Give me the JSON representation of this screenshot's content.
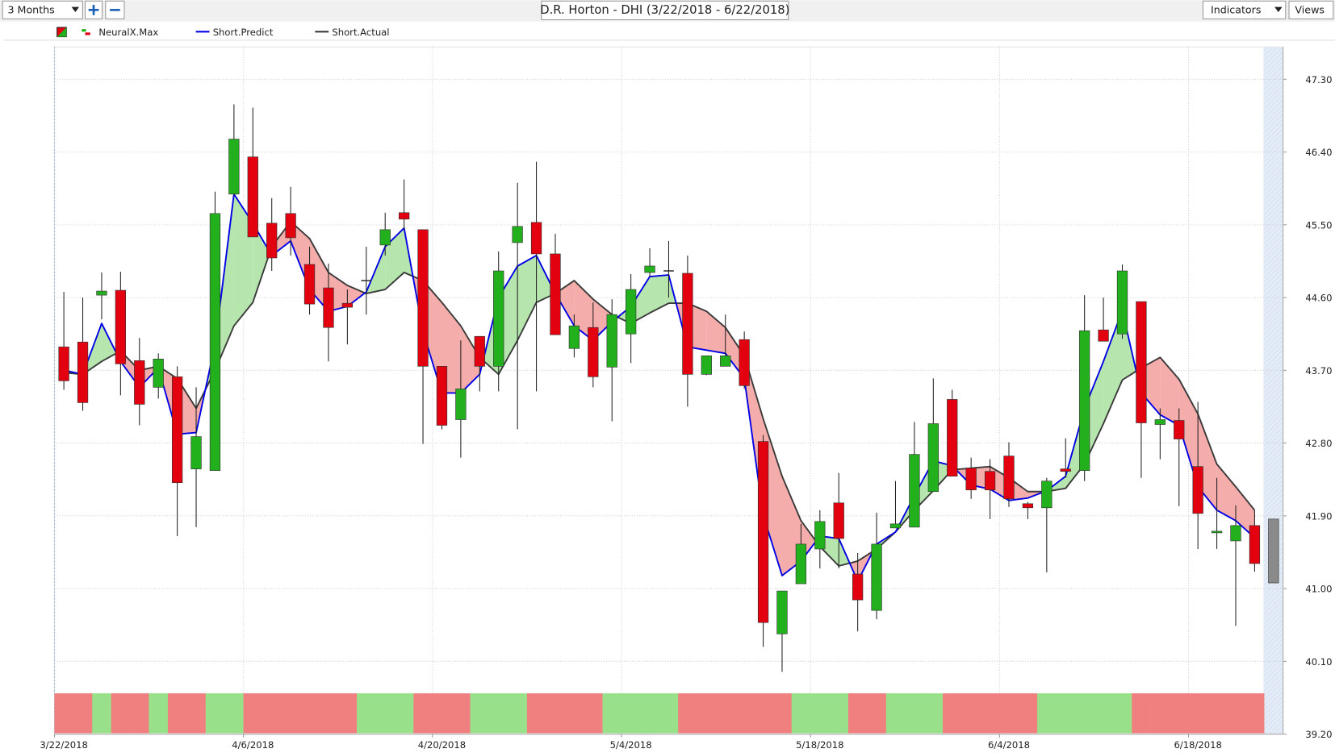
{
  "toolbar": {
    "range": "3 Months",
    "indicators": "Indicators",
    "views": "Views"
  },
  "chart_data": {
    "type": "candlestick",
    "title": "D.R. Horton - DHI (3/22/2018 - 6/22/2018)",
    "categories": [
      "3/22/2018",
      null,
      null,
      null,
      null,
      null,
      null,
      null,
      null,
      null,
      "4/6/2018",
      null,
      null,
      null,
      null,
      null,
      null,
      null,
      null,
      null,
      "4/20/2018",
      null,
      null,
      null,
      null,
      null,
      null,
      null,
      null,
      null,
      "5/4/2018",
      null,
      null,
      null,
      null,
      null,
      null,
      null,
      null,
      null,
      "5/18/2018",
      null,
      null,
      null,
      null,
      null,
      null,
      null,
      null,
      null,
      "6/4/2018",
      null,
      null,
      null,
      null,
      null,
      null,
      null,
      null,
      null,
      "6/18/2018",
      null,
      null,
      null,
      null
    ],
    "open": [
      43.99,
      44.05,
      44.63,
      44.69,
      43.82,
      43.49,
      43.62,
      42.48,
      42.46,
      45.88,
      46.34,
      45.52,
      45.64,
      45.01,
      44.72,
      44.53,
      44.81,
      45.25,
      45.65,
      45.44,
      43.75,
      43.09,
      44.12,
      43.75,
      45.28,
      45.53,
      45.14,
      43.97,
      44.23,
      43.74,
      44.15,
      44.91,
      44.93,
      44.9,
      43.65,
      43.75,
      44.08,
      42.82,
      40.44,
      41.06,
      41.49,
      42.06,
      41.18,
      40.73,
      41.75,
      41.76,
      42.2,
      43.34,
      42.49,
      42.45,
      42.64,
      42.05,
      42.0,
      42.48,
      42.46,
      44.2,
      44.15,
      44.55,
      43.03,
      43.08,
      42.51,
      41.69,
      41.59,
      41.78,
      41.86
    ],
    "high": [
      44.67,
      44.6,
      44.91,
      44.92,
      44.1,
      43.91,
      43.75,
      43.49,
      45.91,
      46.99,
      46.95,
      45.83,
      45.97,
      45.23,
      45.02,
      44.7,
      45.23,
      45.65,
      46.06,
      45.44,
      43.75,
      44.07,
      44.12,
      45.17,
      46.02,
      46.28,
      45.39,
      44.39,
      44.54,
      44.58,
      44.89,
      45.21,
      45.3,
      45.12,
      43.88,
      44.39,
      44.18,
      42.9,
      40.97,
      41.8,
      41.97,
      42.43,
      41.44,
      41.94,
      42.33,
      43.06,
      43.6,
      43.46,
      42.62,
      42.6,
      42.81,
      42.07,
      42.37,
      42.86,
      44.63,
      44.6,
      45.01,
      44.55,
      43.23,
      43.23,
      43.31,
      42.37,
      42.03,
      41.97,
      null
    ],
    "low": [
      43.46,
      43.2,
      44.33,
      43.39,
      43.02,
      43.35,
      41.65,
      41.76,
      42.46,
      45.86,
      45.35,
      44.93,
      45.12,
      44.39,
      43.81,
      44.02,
      44.39,
      45.12,
      45.44,
      42.79,
      42.97,
      42.62,
      43.44,
      43.44,
      42.97,
      43.44,
      44.14,
      43.86,
      43.49,
      43.07,
      43.79,
      44.86,
      44.6,
      43.25,
      43.64,
      43.75,
      43.47,
      40.28,
      39.97,
      41.06,
      41.25,
      41.25,
      40.47,
      40.62,
      41.75,
      41.76,
      42.2,
      42.39,
      42.11,
      41.86,
      42.01,
      41.86,
      41.2,
      42.37,
      42.33,
      44.06,
      44.09,
      42.37,
      42.6,
      42.02,
      41.49,
      41.49,
      40.54,
      41.21,
      null
    ],
    "close": [
      43.57,
      43.3,
      44.68,
      43.78,
      43.28,
      43.84,
      42.31,
      42.88,
      45.64,
      46.56,
      45.35,
      45.09,
      45.34,
      44.52,
      44.23,
      44.48,
      44.81,
      45.44,
      45.57,
      43.75,
      43.02,
      43.47,
      43.75,
      44.93,
      45.48,
      45.14,
      44.14,
      44.25,
      43.62,
      44.39,
      44.7,
      44.99,
      44.93,
      43.65,
      43.88,
      43.88,
      43.51,
      40.58,
      40.97,
      41.55,
      41.83,
      41.62,
      40.86,
      41.55,
      41.8,
      42.66,
      43.04,
      42.39,
      42.22,
      42.22,
      42.11,
      42.0,
      42.33,
      42.45,
      44.19,
      44.06,
      44.93,
      43.05,
      43.09,
      42.85,
      41.93,
      41.71,
      41.78,
      41.31,
      41.07
    ],
    "up_color": "#22b11d",
    "down_color": "#e3000f",
    "doji_color": "#333333",
    "forecast_color": "#8a8a8a",
    "series": [
      {
        "name": "NeuralX.Max",
        "colors": [
          "#f08080",
          "#f08080",
          "#98e08a",
          "#f08080",
          "#f08080",
          "#98e08a",
          "#f08080",
          "#f08080",
          "#98e08a",
          "#98e08a",
          "#f08080",
          "#f08080",
          "#f08080",
          "#f08080",
          "#f08080",
          "#f08080",
          "#98e08a",
          "#98e08a",
          "#98e08a",
          "#f08080",
          "#f08080",
          "#f08080",
          "#98e08a",
          "#98e08a",
          "#98e08a",
          "#f08080",
          "#f08080",
          "#f08080",
          "#f08080",
          "#98e08a",
          "#98e08a",
          "#98e08a",
          "#98e08a",
          "#f08080",
          "#f08080",
          "#f08080",
          "#f08080",
          "#f08080",
          "#f08080",
          "#98e08a",
          "#98e08a",
          "#98e08a",
          "#f08080",
          "#f08080",
          "#98e08a",
          "#98e08a",
          "#98e08a",
          "#f08080",
          "#f08080",
          "#f08080",
          "#f08080",
          "#f08080",
          "#98e08a",
          "#98e08a",
          "#98e08a",
          "#98e08a",
          "#98e08a",
          "#f08080",
          "#f08080",
          "#f08080",
          "#f08080",
          "#f08080",
          "#f08080",
          "#f08080",
          null
        ]
      },
      {
        "name": "Short.Predict",
        "color": "#0000e6",
        "values": [
          43.7,
          43.65,
          44.28,
          43.81,
          43.49,
          43.73,
          42.91,
          42.93,
          44.02,
          45.88,
          45.52,
          45.12,
          45.3,
          44.7,
          44.43,
          44.49,
          44.67,
          45.23,
          45.46,
          44.18,
          43.42,
          43.42,
          43.65,
          44.6,
          44.99,
          45.12,
          44.65,
          44.25,
          44.07,
          44.3,
          44.49,
          44.86,
          44.88,
          43.99,
          43.95,
          43.91,
          43.6,
          41.91,
          41.16,
          41.34,
          41.65,
          41.62,
          41.09,
          41.55,
          41.7,
          42.15,
          42.58,
          42.52,
          42.28,
          42.23,
          42.09,
          42.12,
          42.21,
          42.39,
          43.23,
          43.81,
          44.44,
          43.42,
          43.15,
          43.02,
          42.26,
          41.97,
          41.84,
          41.63,
          null
        ]
      },
      {
        "name": "Short.Actual",
        "color": "#3a3a3a",
        "values": [
          43.67,
          43.65,
          43.81,
          43.94,
          43.7,
          43.75,
          43.6,
          43.23,
          43.7,
          44.25,
          44.54,
          45.23,
          45.54,
          45.33,
          44.91,
          44.75,
          44.65,
          44.7,
          44.91,
          44.81,
          44.54,
          44.25,
          43.86,
          43.65,
          44.07,
          44.54,
          44.65,
          44.81,
          44.58,
          44.39,
          44.28,
          44.41,
          44.53,
          44.53,
          44.43,
          44.23,
          43.88,
          43.1,
          42.39,
          41.84,
          41.52,
          41.28,
          41.34,
          41.49,
          41.7,
          41.97,
          42.21,
          42.47,
          42.49,
          42.51,
          42.37,
          42.2,
          42.2,
          42.24,
          42.54,
          43.04,
          43.58,
          43.73,
          43.86,
          43.59,
          43.16,
          42.54,
          42.26,
          41.97,
          null
        ]
      }
    ],
    "fill_up": "#b6e6ae",
    "fill_down": "#f4adab",
    "ylim": [
      39.2,
      47.7
    ],
    "yticks": [
      {
        "value": 39.2,
        "label": "39.20"
      },
      {
        "value": 40.1,
        "label": "40.10"
      },
      {
        "value": 41,
        "label": "41.00"
      },
      {
        "value": 41.9,
        "label": "41.90"
      },
      {
        "value": 42.8,
        "label": "42.80"
      },
      {
        "value": 43.7,
        "label": "43.70"
      },
      {
        "value": 44.6,
        "label": "44.60"
      },
      {
        "value": 45.5,
        "label": "45.50"
      },
      {
        "value": 46.4,
        "label": "46.40"
      },
      {
        "value": 47.3,
        "label": "47.30"
      }
    ],
    "grid": true
  }
}
